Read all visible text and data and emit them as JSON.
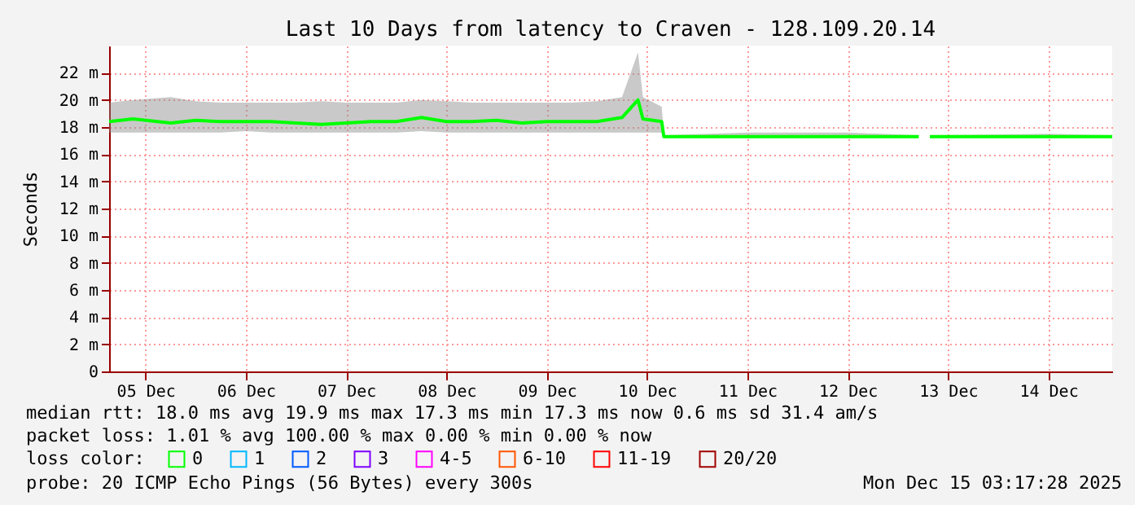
{
  "chart_data": {
    "type": "line",
    "title": "Last 10 Days from latency to Craven - 128.109.20.14",
    "ylabel": "Seconds",
    "legend_title": "loss color:",
    "annotations": [
      "median rtt:  18.0 ms avg  19.9 ms max  17.3 ms min  17.3 ms now  0.6 ms sd  31.4   am/s",
      "packet loss: 1.01 % avg  100.00 % max  0.00 % min  0.00 % now",
      "probe:       20 ICMP Echo Pings (56 Bytes) every 300s",
      "Mon Dec 15 03:17:28 2025"
    ],
    "xlim": [
      "2025-12-05T03:17",
      "2025-12-15T03:17"
    ],
    "xticks": [
      {
        "value": "2025-12-05T12:00",
        "label": "05 Dec"
      },
      {
        "value": "2025-12-06T12:00",
        "label": "06 Dec"
      },
      {
        "value": "2025-12-07T12:00",
        "label": "07 Dec"
      },
      {
        "value": "2025-12-08T12:00",
        "label": "08 Dec"
      },
      {
        "value": "2025-12-09T12:00",
        "label": "09 Dec"
      },
      {
        "value": "2025-12-10T12:00",
        "label": "10 Dec"
      },
      {
        "value": "2025-12-11T12:00",
        "label": "11 Dec"
      },
      {
        "value": "2025-12-12T12:00",
        "label": "12 Dec"
      },
      {
        "value": "2025-12-13T12:00",
        "label": "13 Dec"
      },
      {
        "value": "2025-12-14T12:00",
        "label": "14 Dec"
      }
    ],
    "ylim": [
      0,
      24
    ],
    "yticks": [
      0,
      {
        "value": 2,
        "label": "2 m"
      },
      {
        "value": 4,
        "label": "4 m"
      },
      {
        "value": 6,
        "label": "6 m"
      },
      {
        "value": 8,
        "label": "8 m"
      },
      {
        "value": 10,
        "label": "10 m"
      },
      {
        "value": 12,
        "label": "12 m"
      },
      {
        "value": 14,
        "label": "14 m"
      },
      {
        "value": 16,
        "label": "16 m"
      },
      {
        "value": 18,
        "label": "18 m"
      },
      {
        "value": 20,
        "label": "20 m"
      },
      {
        "value": 22,
        "label": "22 m"
      }
    ],
    "grid": true,
    "legend": "bottom",
    "marker": "none",
    "line_style": "solid",
    "series": [
      {
        "name": "0",
        "color": "#00ff00",
        "x": [
          "2025-12-05T03:17",
          "2025-12-05T09:00",
          "2025-12-05T18:00",
          "2025-12-06T00:00",
          "2025-12-06T06:00",
          "2025-12-06T12:00",
          "2025-12-06T18:00",
          "2025-12-07T00:00",
          "2025-12-07T06:00",
          "2025-12-07T12:00",
          "2025-12-07T18:00",
          "2025-12-08T00:00",
          "2025-12-08T06:00",
          "2025-12-08T12:00",
          "2025-12-08T18:00",
          "2025-12-09T00:00",
          "2025-12-09T06:00",
          "2025-12-09T12:00",
          "2025-12-09T18:00",
          "2025-12-10T00:00",
          "2025-12-10T06:00",
          "2025-12-10T09:50",
          "2025-12-10T11:00",
          "2025-12-10T15:30",
          "2025-12-10T16:00",
          "2025-12-11T12:00",
          "2025-12-12T12:00",
          "2025-12-13T05:00",
          "2025-12-13T06:20",
          "2025-12-13T07:40",
          "2025-12-14T12:00",
          "2025-12-15T03:17"
        ],
        "values": [
          18.4,
          18.6,
          18.3,
          18.5,
          18.4,
          18.4,
          18.4,
          18.3,
          18.2,
          18.3,
          18.4,
          18.4,
          18.7,
          18.4,
          18.4,
          18.5,
          18.3,
          18.4,
          18.4,
          18.4,
          18.7,
          20.0,
          18.6,
          18.4,
          17.3,
          17.3,
          17.3,
          17.3,
          null,
          17.3,
          17.3,
          17.3
        ],
        "lower": [
          17.6,
          17.6,
          17.6,
          17.6,
          17.6,
          17.7,
          17.6,
          17.6,
          17.6,
          17.6,
          17.6,
          17.6,
          17.7,
          17.6,
          17.6,
          17.6,
          17.6,
          17.6,
          17.6,
          17.6,
          17.6,
          17.6,
          17.6,
          17.6,
          17.3,
          17.3,
          17.3,
          17.3,
          null,
          17.3,
          17.3,
          17.3
        ],
        "upper": [
          19.8,
          20.0,
          20.2,
          19.9,
          19.8,
          19.8,
          19.8,
          19.8,
          19.9,
          19.8,
          19.8,
          19.8,
          20.0,
          19.9,
          19.8,
          19.8,
          19.8,
          19.8,
          19.8,
          19.9,
          20.2,
          23.5,
          20.2,
          19.5,
          17.4,
          17.6,
          17.6,
          17.4,
          null,
          17.4,
          17.5,
          17.4
        ]
      },
      {
        "name": "1",
        "color": "#00b8ff"
      },
      {
        "name": "2",
        "color": "#0059ff"
      },
      {
        "name": "3",
        "color": "#7e00ff"
      },
      {
        "name": "4-5",
        "color": "#ff00ff"
      },
      {
        "name": "6-10",
        "color": "#ff5500"
      },
      {
        "name": "11-19",
        "color": "#ff0000"
      },
      {
        "name": "20/20",
        "color": "#a10000"
      }
    ]
  }
}
